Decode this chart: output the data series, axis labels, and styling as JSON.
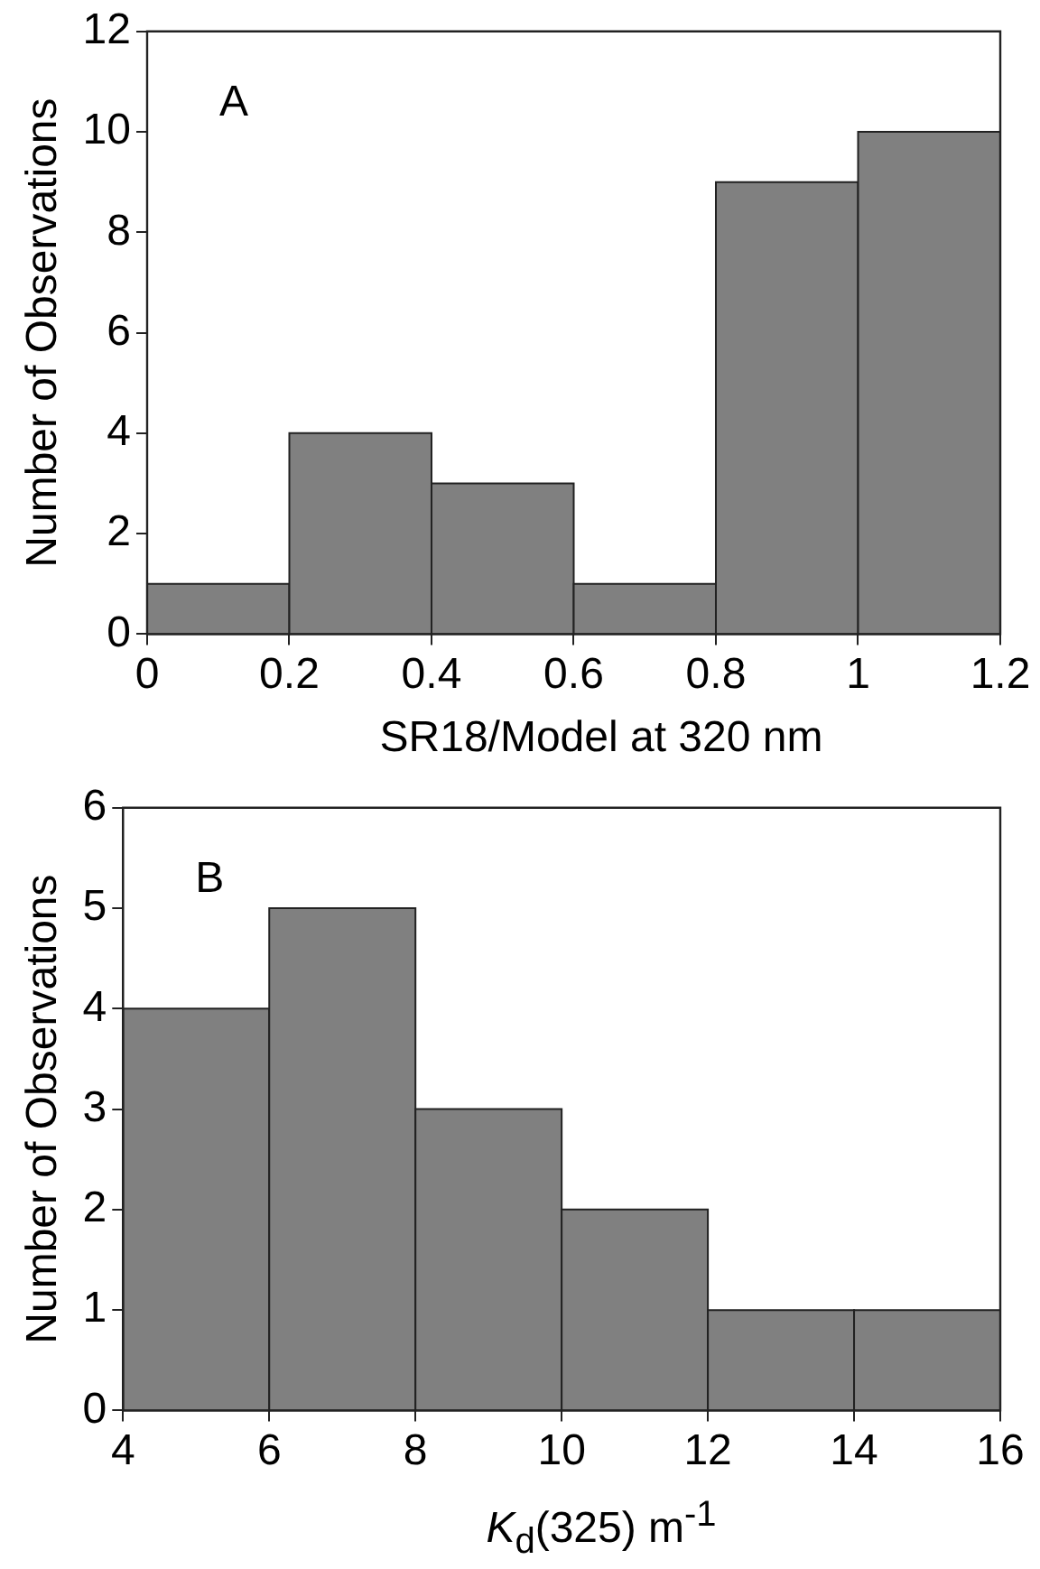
{
  "chart_data": [
    {
      "type": "histogram",
      "bins": [
        0,
        0.2,
        0.4,
        0.6,
        0.8,
        1.0,
        1.2
      ],
      "values": [
        1,
        4,
        3,
        1,
        9,
        10
      ],
      "color": "#808080",
      "xlabel": "SR18/Model at 320 nm",
      "ylabel": "Number of Observations",
      "xlim": [
        0,
        1.2
      ],
      "xticks": [
        0,
        0.2,
        0.4,
        0.6,
        0.8,
        1,
        1.2
      ],
      "ylim": [
        0,
        12
      ],
      "yticks": [
        0,
        2,
        4,
        6,
        8,
        10,
        12
      ],
      "annotations": [
        "A"
      ],
      "grid": false,
      "legend": false
    },
    {
      "type": "histogram",
      "bins": [
        4,
        6,
        8,
        10,
        12,
        14,
        16
      ],
      "values": [
        4,
        5,
        3,
        2,
        1,
        1
      ],
      "color": "#808080",
      "xlabel": "K$_{d}$(325) m$^{-1}$",
      "ylabel": "Number of Observations",
      "xlim": [
        4,
        16
      ],
      "xticks": [
        4,
        6,
        8,
        10,
        12,
        14,
        16
      ],
      "ylim": [
        0,
        6
      ],
      "yticks": [
        0,
        1,
        2,
        3,
        4,
        5,
        6
      ],
      "annotations": [
        "B"
      ],
      "grid": false,
      "legend": false
    }
  ]
}
